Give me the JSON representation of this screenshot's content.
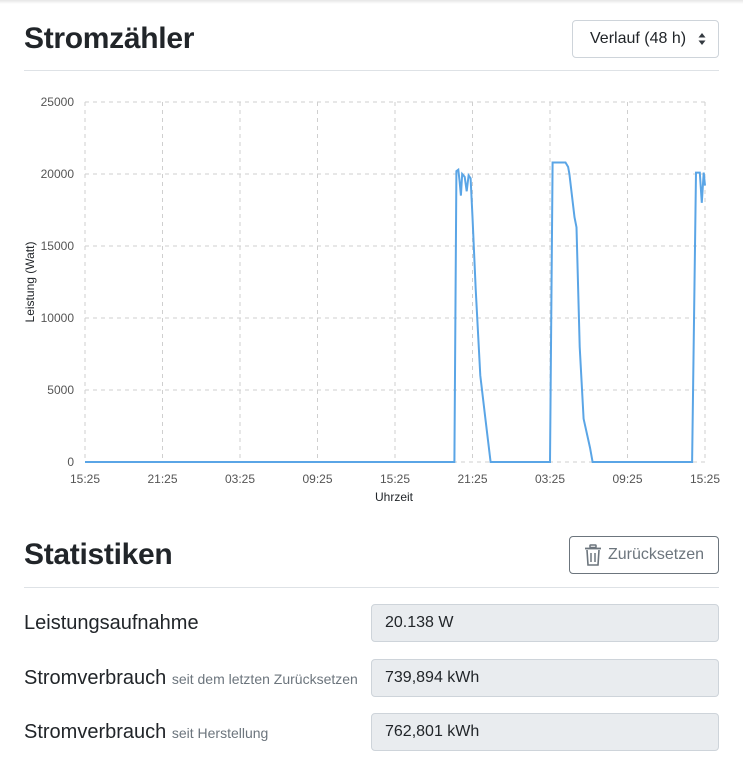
{
  "meter": {
    "title": "Stromzähler",
    "range_select": {
      "selected": "Verlauf (48 h)"
    }
  },
  "chart_data": {
    "type": "line",
    "xlabel": "Uhrzeit",
    "ylabel": "Leistung (Watt)",
    "ylim": [
      0,
      25000
    ],
    "yticks": [
      "0",
      "5000",
      "10000",
      "15000",
      "20000",
      "25000"
    ],
    "xticks": [
      "15:25",
      "21:25",
      "03:25",
      "09:25",
      "15:25",
      "21:25",
      "03:25",
      "09:25",
      "15:25"
    ],
    "grid": true,
    "color": "#5aa5e6",
    "series": [
      {
        "x_hours": [
          0,
          28.6,
          28.75,
          28.9,
          29.0,
          29.1,
          29.2,
          29.4,
          29.55,
          29.7,
          29.85,
          30.0,
          30.25,
          30.6,
          31.0,
          31.2,
          31.4,
          31.9,
          34.0,
          36.0,
          36.2,
          37.2,
          37.4,
          37.5,
          37.9,
          38.05,
          38.3,
          38.6,
          39.1,
          39.3,
          39.5,
          47.0,
          47.3,
          47.6,
          47.75,
          47.9,
          48.0
        ],
        "values": [
          0,
          0,
          20200,
          20300,
          19500,
          18500,
          20000,
          19800,
          18800,
          19900,
          19700,
          17000,
          12000,
          6000,
          3000,
          1500,
          0,
          0,
          0,
          0,
          20800,
          20800,
          20500,
          20000,
          17000,
          16300,
          8000,
          3000,
          1000,
          0,
          0,
          0,
          20100,
          20100,
          18000,
          20100,
          19200
        ]
      }
    ]
  },
  "stats": {
    "title": "Statistiken",
    "reset_label": "Zurücksetzen",
    "rows": [
      {
        "label": "Leistungsaufnahme",
        "sub": "",
        "value": "20.138 W"
      },
      {
        "label": "Stromverbrauch",
        "sub": "seit dem letzten Zurücksetzen",
        "value": "739,894 kWh"
      },
      {
        "label": "Stromverbrauch",
        "sub": "seit Herstellung",
        "value": "762,801 kWh"
      }
    ]
  },
  "icons": {
    "reset_button_icon": "trash-icon",
    "select_icon": "sort-caret-icon"
  }
}
